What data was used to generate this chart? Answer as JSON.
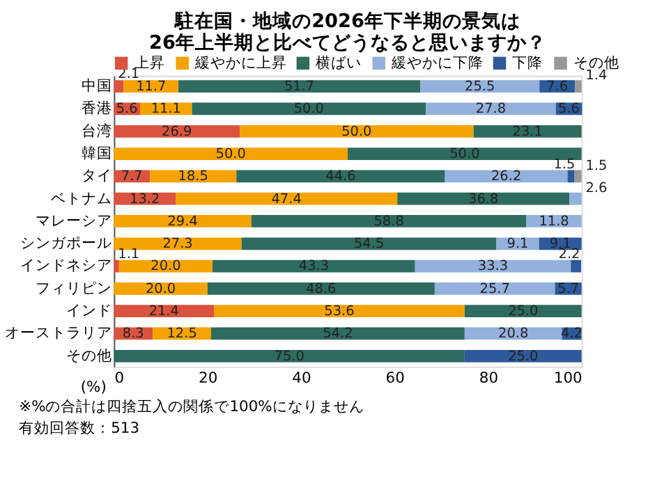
{
  "chart_data": {
    "type": "bar",
    "orientation": "horizontal",
    "stacked": true,
    "title": [
      "駐在国・地域の2026年下半期の景気は",
      "26年上半期と比べてどうなると思いますか？"
    ],
    "categories": [
      "中国",
      "香港",
      "台湾",
      "韓国",
      "タイ",
      "ベトナム",
      "マレーシア",
      "シンガポール",
      "インドネシア",
      "フィリピン",
      "インド",
      "オーストラリア",
      "その他"
    ],
    "series": [
      {
        "name": "上昇",
        "color": "#d9533f",
        "values": [
          2.1,
          5.6,
          26.9,
          null,
          7.7,
          13.2,
          null,
          null,
          1.1,
          null,
          21.4,
          8.3,
          null
        ],
        "value_labels": [
          "2.1",
          "5.6",
          "26.9",
          null,
          "7.7",
          "13.2",
          null,
          null,
          "1.1",
          null,
          "21.4",
          "8.3",
          null
        ]
      },
      {
        "name": "緩やかに上昇",
        "color": "#f5a300",
        "values": [
          11.7,
          11.1,
          50,
          50,
          18.5,
          47.4,
          29.4,
          27.3,
          20,
          20,
          53.6,
          12.5,
          null
        ],
        "value_labels": [
          "11.7",
          "11.1",
          "50.0",
          "50.0",
          "18.5",
          "47.4",
          "29.4",
          "27.3",
          "20.0",
          "20.0",
          "53.6",
          "12.5",
          null
        ]
      },
      {
        "name": "横ばい",
        "color": "#2e6b60",
        "values": [
          51.7,
          50,
          23.1,
          50,
          44.6,
          36.8,
          58.8,
          54.5,
          43.3,
          48.6,
          25,
          54.2,
          75
        ],
        "value_labels": [
          "51.7",
          "50.0",
          "23.1",
          "50.0",
          "44.6",
          "36.8",
          "58.8",
          "54.5",
          "43.3",
          "48.6",
          "25.0",
          "54.2",
          "75.0"
        ]
      },
      {
        "name": "緩やかに下降",
        "color": "#94b0dc",
        "values": [
          25.5,
          27.8,
          null,
          null,
          26.2,
          2.6,
          11.8,
          9.1,
          33.3,
          25.7,
          null,
          20.8,
          null
        ],
        "value_labels": [
          "25.5",
          "27.8",
          null,
          null,
          "26.2",
          "2.6",
          "11.8",
          "9.1",
          "33.3",
          "25.7",
          null,
          "20.8",
          null
        ]
      },
      {
        "name": "下降",
        "color": "#2d5a9a",
        "values": [
          7.6,
          5.6,
          null,
          null,
          1.5,
          null,
          null,
          9.1,
          2.2,
          5.7,
          null,
          4.2,
          25
        ],
        "value_labels": [
          "7.6",
          "5.6",
          null,
          null,
          "1.5",
          null,
          null,
          "9.1",
          "2.2",
          "5.7",
          null,
          "4.2",
          "25.0"
        ]
      },
      {
        "name": "その他",
        "color": "#999999",
        "values": [
          1.4,
          null,
          null,
          null,
          1.5,
          null,
          null,
          null,
          null,
          null,
          null,
          null,
          null
        ],
        "value_labels": [
          "1.4",
          null,
          null,
          null,
          "1.5",
          null,
          null,
          null,
          null,
          null,
          null,
          null,
          null
        ]
      }
    ],
    "xlim": [
      0,
      100
    ],
    "xticks": [
      0,
      20,
      40,
      60,
      80,
      100
    ],
    "xlabel": "(%)",
    "legend": "top",
    "grid": false,
    "annotations": [
      "※%の合計は四捨五入の関係で100%になりません",
      "有効回答数：513"
    ]
  }
}
